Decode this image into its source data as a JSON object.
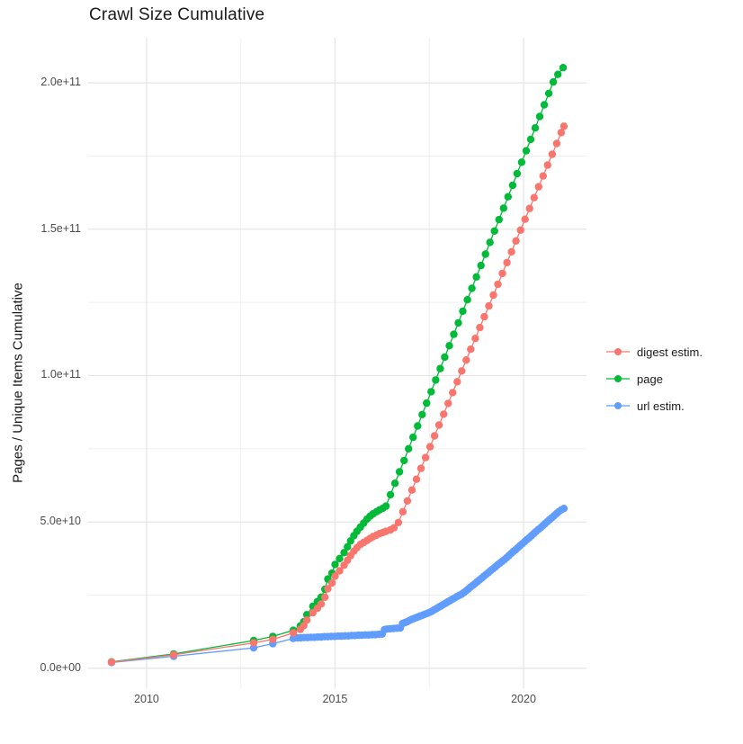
{
  "title": "Crawl Size Cumulative",
  "axes": {
    "y_title": "Pages / Unique Items Cumulative",
    "y_ticks": [
      {
        "label": "0.0e+00",
        "value": 0
      },
      {
        "label": "5.0e+10",
        "value": 50
      },
      {
        "label": "1.0e+11",
        "value": 100
      },
      {
        "label": "1.5e+11",
        "value": 150
      },
      {
        "label": "2.0e+11",
        "value": 200
      }
    ],
    "x_ticks": [
      {
        "label": "2010",
        "value": 2010
      },
      {
        "label": "2015",
        "value": 2015
      },
      {
        "label": "2020",
        "value": 2020
      }
    ]
  },
  "legend": {
    "items": [
      {
        "label": "digest estim.",
        "color": "#F8766D"
      },
      {
        "label": "page",
        "color": "#00BA38"
      },
      {
        "label": "url estim.",
        "color": "#619CFF"
      }
    ]
  },
  "chart_data": {
    "type": "scatter",
    "title": "Crawl Size Cumulative",
    "xlabel": "",
    "ylabel": "Pages / Unique Items Cumulative",
    "y_unit": "billions (1e9); y tick 50 = 5.0e+10",
    "x_range": [
      2008.45,
      2021.67
    ],
    "y_range": [
      -6.8,
      215.4
    ],
    "x_major_ticks": [
      2010,
      2015,
      2020
    ],
    "x_minor_ticks": [
      2012.5,
      2017.5
    ],
    "y_major_ticks": [
      0,
      50,
      100,
      150,
      200
    ],
    "y_minor_ticks": [
      25,
      75,
      125,
      175
    ],
    "grid": true,
    "legend_position": "right-center",
    "marker_radius_px": 4.2,
    "series": [
      {
        "name": "page",
        "color": "#00BA38",
        "points": [
          [
            2009.07,
            2.2
          ],
          [
            2010.72,
            4.9
          ],
          [
            2012.84,
            9.5
          ],
          [
            2013.35,
            10.9
          ],
          [
            2013.89,
            13.0
          ],
          [
            2014.08,
            14.5
          ],
          [
            2014.17,
            15.9
          ],
          [
            2014.25,
            18.3
          ],
          [
            2014.41,
            21.2
          ],
          [
            2014.53,
            22.8
          ],
          [
            2014.63,
            24.3
          ],
          [
            2014.73,
            27.0
          ],
          [
            2014.81,
            30.5
          ],
          [
            2014.92,
            32.5
          ],
          [
            2015.0,
            35.5
          ],
          [
            2015.12,
            37.5
          ],
          [
            2015.24,
            39.5
          ],
          [
            2015.33,
            41.5
          ],
          [
            2015.41,
            43.5
          ],
          [
            2015.5,
            45.3
          ],
          [
            2015.58,
            46.8
          ],
          [
            2015.67,
            48.2
          ],
          [
            2015.76,
            49.6
          ],
          [
            2015.85,
            51.0
          ],
          [
            2015.93,
            52.0
          ],
          [
            2016.01,
            52.8
          ],
          [
            2016.1,
            53.5
          ],
          [
            2016.18,
            54.1
          ],
          [
            2016.27,
            54.7
          ],
          [
            2016.35,
            55.4
          ],
          [
            2016.47,
            59.3
          ],
          [
            2016.59,
            63.2
          ],
          [
            2016.71,
            67.1
          ],
          [
            2016.83,
            71.0
          ],
          [
            2016.95,
            75.0
          ],
          [
            2017.07,
            78.9
          ],
          [
            2017.19,
            82.8
          ],
          [
            2017.31,
            86.7
          ],
          [
            2017.43,
            90.6
          ],
          [
            2017.55,
            94.5
          ],
          [
            2017.67,
            98.5
          ],
          [
            2017.79,
            102.4
          ],
          [
            2017.91,
            106.3
          ],
          [
            2018.03,
            110.2
          ],
          [
            2018.15,
            114.1
          ],
          [
            2018.27,
            118.0
          ],
          [
            2018.39,
            122.0
          ],
          [
            2018.51,
            125.9
          ],
          [
            2018.63,
            129.8
          ],
          [
            2018.75,
            133.7
          ],
          [
            2018.87,
            137.6
          ],
          [
            2018.99,
            141.5
          ],
          [
            2019.11,
            145.5
          ],
          [
            2019.23,
            149.4
          ],
          [
            2019.35,
            153.3
          ],
          [
            2019.47,
            157.2
          ],
          [
            2019.59,
            161.1
          ],
          [
            2019.71,
            165.0
          ],
          [
            2019.83,
            169.0
          ],
          [
            2019.95,
            172.9
          ],
          [
            2020.07,
            176.8
          ],
          [
            2020.19,
            180.7
          ],
          [
            2020.31,
            184.6
          ],
          [
            2020.43,
            188.5
          ],
          [
            2020.55,
            192.5
          ],
          [
            2020.67,
            196.4
          ],
          [
            2020.79,
            200.3
          ],
          [
            2020.91,
            202.9
          ],
          [
            2021.05,
            205.2
          ]
        ]
      },
      {
        "name": "url estim.",
        "color": "#619CFF",
        "points": [
          [
            2009.07,
            2.0
          ],
          [
            2010.72,
            4.1
          ],
          [
            2012.84,
            7.0
          ],
          [
            2013.35,
            8.4
          ],
          [
            2013.89,
            10.2
          ],
          [
            2014.0,
            10.4
          ],
          [
            2014.09,
            10.4
          ],
          [
            2014.18,
            10.5
          ],
          [
            2014.27,
            10.5
          ],
          [
            2014.36,
            10.6
          ],
          [
            2014.45,
            10.6
          ],
          [
            2014.54,
            10.7
          ],
          [
            2014.63,
            10.7
          ],
          [
            2014.72,
            10.8
          ],
          [
            2014.81,
            10.8
          ],
          [
            2014.9,
            10.9
          ],
          [
            2014.99,
            10.9
          ],
          [
            2015.08,
            11.0
          ],
          [
            2015.17,
            11.0
          ],
          [
            2015.26,
            11.1
          ],
          [
            2015.35,
            11.1
          ],
          [
            2015.44,
            11.2
          ],
          [
            2015.53,
            11.2
          ],
          [
            2015.62,
            11.3
          ],
          [
            2015.71,
            11.3
          ],
          [
            2015.8,
            11.4
          ],
          [
            2015.89,
            11.4
          ],
          [
            2015.98,
            11.5
          ],
          [
            2016.07,
            11.5
          ],
          [
            2016.16,
            11.6
          ],
          [
            2016.25,
            11.7
          ],
          [
            2016.31,
            13.2
          ],
          [
            2016.37,
            13.4
          ],
          [
            2016.46,
            13.5
          ],
          [
            2016.55,
            13.6
          ],
          [
            2016.64,
            13.7
          ],
          [
            2016.73,
            13.8
          ],
          [
            2016.79,
            15.3
          ],
          [
            2016.85,
            15.6
          ],
          [
            2016.91,
            15.9
          ],
          [
            2016.97,
            16.3
          ],
          [
            2017.03,
            16.7
          ],
          [
            2017.09,
            17.0
          ],
          [
            2017.15,
            17.3
          ],
          [
            2017.21,
            17.6
          ],
          [
            2017.27,
            17.9
          ],
          [
            2017.33,
            18.2
          ],
          [
            2017.39,
            18.5
          ],
          [
            2017.45,
            18.8
          ],
          [
            2017.51,
            19.1
          ],
          [
            2017.57,
            19.5
          ],
          [
            2017.63,
            20.0
          ],
          [
            2017.69,
            20.4
          ],
          [
            2017.75,
            20.9
          ],
          [
            2017.81,
            21.3
          ],
          [
            2017.87,
            21.8
          ],
          [
            2017.93,
            22.2
          ],
          [
            2017.99,
            22.7
          ],
          [
            2018.05,
            23.1
          ],
          [
            2018.11,
            23.6
          ],
          [
            2018.17,
            24.0
          ],
          [
            2018.23,
            24.5
          ],
          [
            2018.29,
            24.9
          ],
          [
            2018.35,
            25.3
          ],
          [
            2018.41,
            25.8
          ],
          [
            2018.47,
            26.4
          ],
          [
            2018.53,
            27.0
          ],
          [
            2018.59,
            27.7
          ],
          [
            2018.65,
            28.3
          ],
          [
            2018.71,
            28.9
          ],
          [
            2018.77,
            29.6
          ],
          [
            2018.83,
            30.2
          ],
          [
            2018.89,
            30.8
          ],
          [
            2018.95,
            31.5
          ],
          [
            2019.01,
            32.1
          ],
          [
            2019.07,
            32.7
          ],
          [
            2019.13,
            33.4
          ],
          [
            2019.19,
            34.0
          ],
          [
            2019.25,
            34.6
          ],
          [
            2019.31,
            35.3
          ],
          [
            2019.37,
            35.9
          ],
          [
            2019.43,
            36.5
          ],
          [
            2019.49,
            37.1
          ],
          [
            2019.55,
            37.8
          ],
          [
            2019.61,
            38.5
          ],
          [
            2019.67,
            39.2
          ],
          [
            2019.73,
            39.9
          ],
          [
            2019.79,
            40.5
          ],
          [
            2019.85,
            41.2
          ],
          [
            2019.91,
            41.9
          ],
          [
            2019.97,
            42.6
          ],
          [
            2020.03,
            43.3
          ],
          [
            2020.09,
            44.0
          ],
          [
            2020.15,
            44.6
          ],
          [
            2020.21,
            45.3
          ],
          [
            2020.27,
            46.0
          ],
          [
            2020.33,
            46.7
          ],
          [
            2020.39,
            47.4
          ],
          [
            2020.45,
            48.0
          ],
          [
            2020.51,
            48.7
          ],
          [
            2020.57,
            49.4
          ],
          [
            2020.63,
            50.1
          ],
          [
            2020.69,
            50.8
          ],
          [
            2020.75,
            51.4
          ],
          [
            2020.81,
            52.1
          ],
          [
            2020.87,
            52.8
          ],
          [
            2020.93,
            53.5
          ],
          [
            2021.0,
            54.1
          ],
          [
            2021.07,
            54.6
          ]
        ]
      },
      {
        "name": "digest estim.",
        "color": "#F8766D",
        "points": [
          [
            2009.07,
            2.1
          ],
          [
            2010.72,
            4.6
          ],
          [
            2012.84,
            8.7
          ],
          [
            2013.35,
            9.9
          ],
          [
            2013.89,
            12.1
          ],
          [
            2014.08,
            13.3
          ],
          [
            2014.17,
            14.6
          ],
          [
            2014.25,
            16.5
          ],
          [
            2014.41,
            19.0
          ],
          [
            2014.53,
            20.5
          ],
          [
            2014.63,
            22.0
          ],
          [
            2014.73,
            24.3
          ],
          [
            2014.81,
            27.2
          ],
          [
            2014.92,
            29.2
          ],
          [
            2015.0,
            31.5
          ],
          [
            2015.12,
            33.3
          ],
          [
            2015.24,
            35.2
          ],
          [
            2015.33,
            36.9
          ],
          [
            2015.41,
            38.5
          ],
          [
            2015.5,
            40.0
          ],
          [
            2015.58,
            41.2
          ],
          [
            2015.67,
            42.3
          ],
          [
            2015.76,
            43.0
          ],
          [
            2015.85,
            43.7
          ],
          [
            2015.93,
            44.4
          ],
          [
            2016.01,
            45.0
          ],
          [
            2016.1,
            45.5
          ],
          [
            2016.18,
            46.0
          ],
          [
            2016.27,
            46.4
          ],
          [
            2016.35,
            46.8
          ],
          [
            2016.47,
            47.3
          ],
          [
            2016.56,
            48.0
          ],
          [
            2016.68,
            49.8
          ],
          [
            2016.8,
            53.5
          ],
          [
            2016.92,
            57.2
          ],
          [
            2017.04,
            60.9
          ],
          [
            2017.16,
            64.6
          ],
          [
            2017.28,
            68.3
          ],
          [
            2017.4,
            72.0
          ],
          [
            2017.52,
            75.7
          ],
          [
            2017.64,
            79.4
          ],
          [
            2017.76,
            83.1
          ],
          [
            2017.88,
            86.8
          ],
          [
            2018.0,
            90.5
          ],
          [
            2018.12,
            94.2
          ],
          [
            2018.24,
            97.9
          ],
          [
            2018.36,
            101.6
          ],
          [
            2018.48,
            105.3
          ],
          [
            2018.6,
            109.0
          ],
          [
            2018.72,
            112.7
          ],
          [
            2018.84,
            116.4
          ],
          [
            2018.96,
            120.1
          ],
          [
            2019.08,
            123.8
          ],
          [
            2019.2,
            127.5
          ],
          [
            2019.32,
            131.2
          ],
          [
            2019.44,
            134.9
          ],
          [
            2019.56,
            138.6
          ],
          [
            2019.68,
            142.3
          ],
          [
            2019.8,
            146.0
          ],
          [
            2019.92,
            149.7
          ],
          [
            2020.04,
            153.4
          ],
          [
            2020.16,
            157.1
          ],
          [
            2020.28,
            160.8
          ],
          [
            2020.4,
            164.5
          ],
          [
            2020.52,
            168.2
          ],
          [
            2020.64,
            171.9
          ],
          [
            2020.76,
            175.6
          ],
          [
            2020.88,
            179.3
          ],
          [
            2021.0,
            183.0
          ],
          [
            2021.07,
            185.2
          ]
        ]
      }
    ],
    "grid_major_color": "#e4e4e4",
    "grid_minor_color": "#f0f0f0"
  }
}
